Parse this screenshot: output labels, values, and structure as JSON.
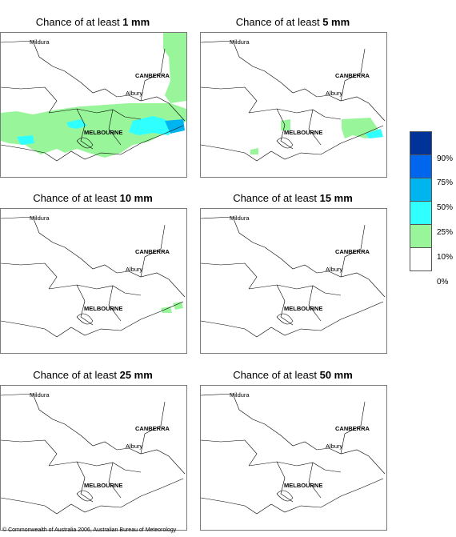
{
  "panels": [
    {
      "prefix": "Chance of at least",
      "amount": "1 mm"
    },
    {
      "prefix": "Chance of at least",
      "amount": "5 mm"
    },
    {
      "prefix": "Chance of at least",
      "amount": "10 mm"
    },
    {
      "prefix": "Chance of at least",
      "amount": "15 mm"
    },
    {
      "prefix": "Chance of at least",
      "amount": "25 mm"
    },
    {
      "prefix": "Chance of at least",
      "amount": "50 mm"
    }
  ],
  "places": {
    "mildura": "Mildura",
    "canberra": "CANBERRA",
    "albury": "Albury",
    "melbourne": "MELBOURNE"
  },
  "legend": {
    "labels": [
      "90%",
      "75%",
      "50%",
      "25%",
      "10%",
      "0%"
    ],
    "colors": [
      "#003399",
      "#0066ee",
      "#00b4f0",
      "#30ffff",
      "#99f599",
      "#ffffff"
    ]
  },
  "copyright": "© Commonwealth of Australia 2006, Australian Bureau of Meteorology"
}
